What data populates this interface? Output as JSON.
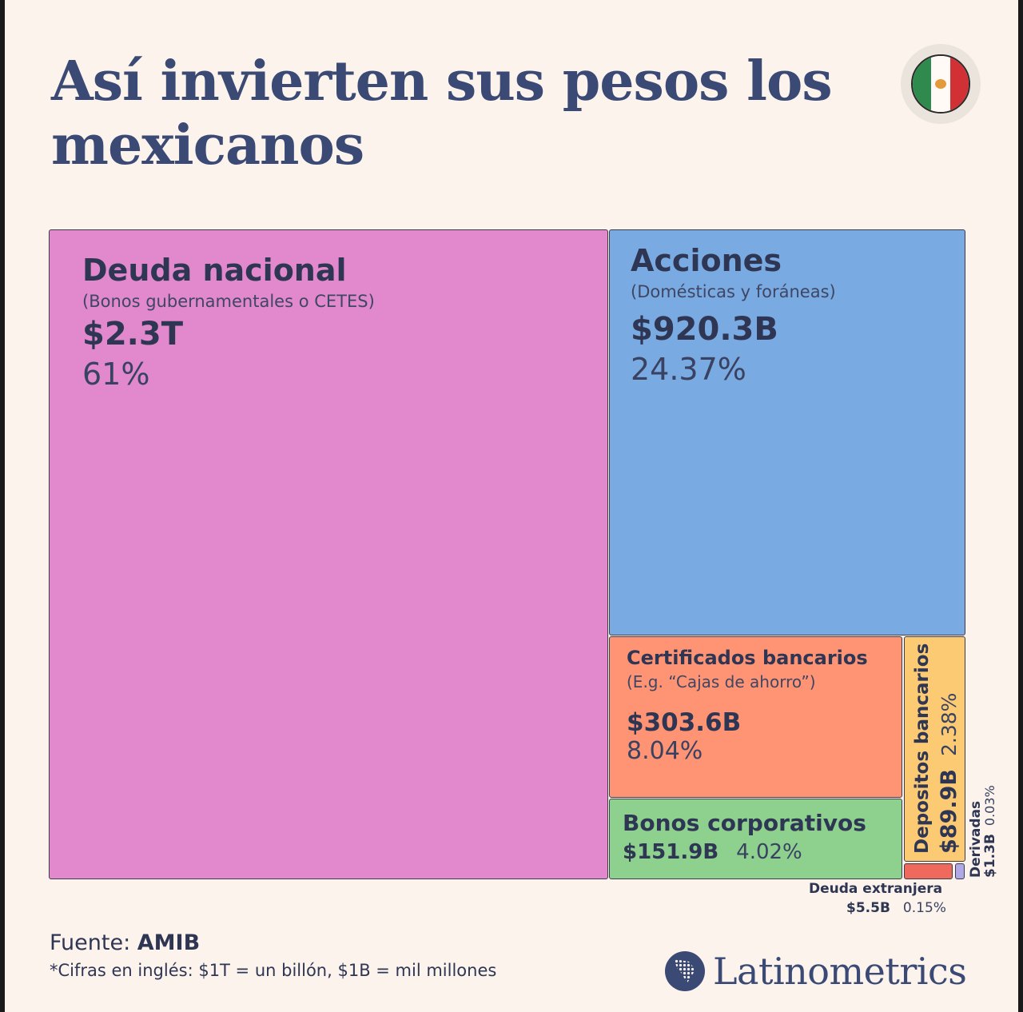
{
  "title": "Así invierten sus pesos los mexicanos",
  "footer": {
    "source_prefix": "Fuente: ",
    "source_name": "AMIB",
    "note": "*Cifras en inglés: $1T = un billón, $1B = mil millones"
  },
  "brand": {
    "name": "Latinometrics",
    "icon": "latin-america-dotted-map-icon"
  },
  "flag": {
    "icon": "mexico-flag-icon"
  },
  "colors": {
    "background": "#fbf3ec",
    "title": "#3b4a75",
    "deuda_nacional": "#e189cc",
    "acciones": "#7aaae2",
    "certificados": "#fe9474",
    "bonos_corporativos": "#8ed08d",
    "depositos": "#fbca73",
    "deuda_extranjera": "#ef6a5c",
    "derivadas": "#b1a8e6"
  },
  "chart_data": {
    "type": "treemap",
    "title": "Así invierten sus pesos los mexicanos",
    "items": [
      {
        "name": "Deuda nacional",
        "subtitle": "(Bonos gubernamentales o CETES)",
        "value_label": "$2.3T",
        "value_usd_billions": 2300,
        "percent_label": "61%",
        "percent": 61
      },
      {
        "name": "Acciones",
        "subtitle": "(Domésticas y foráneas)",
        "value_label": "$920.3B",
        "value_usd_billions": 920.3,
        "percent_label": "24.37%",
        "percent": 24.37
      },
      {
        "name": "Certificados bancarios",
        "subtitle": "(E.g. “Cajas de ahorro”)",
        "value_label": "$303.6B",
        "value_usd_billions": 303.6,
        "percent_label": "8.04%",
        "percent": 8.04
      },
      {
        "name": "Bonos corporativos",
        "value_label": "$151.9B",
        "value_usd_billions": 151.9,
        "percent_label": "4.02%",
        "percent": 4.02
      },
      {
        "name": "Depositos bancarios",
        "value_label": "$89.9B",
        "value_usd_billions": 89.9,
        "percent_label": "2.38%",
        "percent": 2.38
      },
      {
        "name": "Deuda extranjera",
        "value_label": "$5.5B",
        "value_usd_billions": 5.5,
        "percent_label": "0.15%",
        "percent": 0.15
      },
      {
        "name": "Derivadas",
        "value_label": "$1.3B",
        "value_usd_billions": 1.3,
        "percent_label": "0.03%",
        "percent": 0.03
      }
    ]
  }
}
